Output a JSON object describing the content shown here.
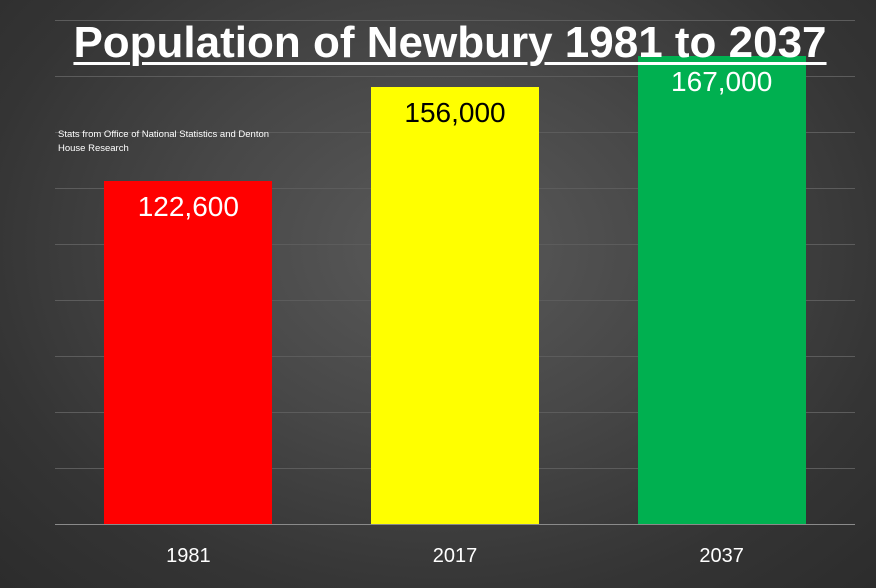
{
  "chart_data": {
    "type": "bar",
    "title": "Population of Newbury 1981 to 2037",
    "note": "Stats from Office of National Statistics and Denton House Research",
    "categories": [
      "1981",
      "2017",
      "2037"
    ],
    "values": [
      122600,
      156000,
      167000
    ],
    "data_labels": [
      "122,600",
      "156,000",
      "167,000"
    ],
    "bar_colors": [
      "#ff0000",
      "#ffff00",
      "#00b050"
    ],
    "label_colors": [
      "#ffffff",
      "#000000",
      "#ffffff"
    ],
    "xlabel": "",
    "ylabel": "",
    "ylim": [
      0,
      180000
    ],
    "grid": true,
    "legend": "none",
    "background": "#404040"
  }
}
